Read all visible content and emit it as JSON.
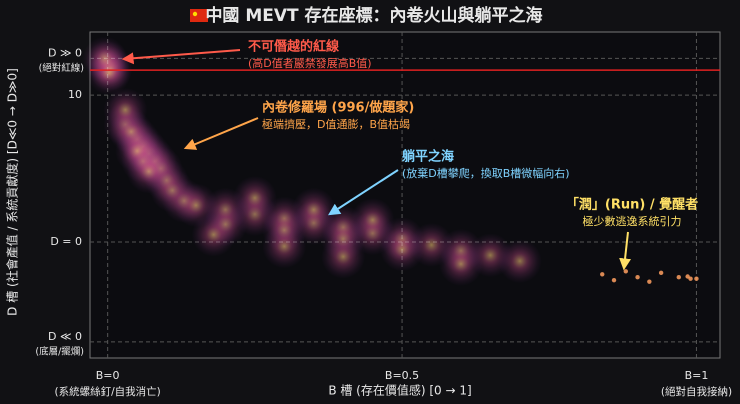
{
  "chart_data": {
    "type": "scatter",
    "title": "中國 MEVT 存在座標：內卷火山與躺平之海",
    "xlabel": "B 槽 (存在價值感) [0 → 1]",
    "ylabel": "D 槽 (社會產值 / 系統貢獻度) [D≪0 → D≫0]",
    "xlim": [
      -0.03,
      1.04
    ],
    "ylim": [
      -7.9,
      14.3
    ],
    "xticks": [
      {
        "value": 0,
        "label": "B=0"
      },
      {
        "value": 0.5,
        "label": "B=0.5"
      },
      {
        "value": 1,
        "label": "B=1"
      }
    ],
    "xtick_sublabels": [
      "(系統螺絲釘/自我消亡)",
      null,
      "(絕對自我接納)"
    ],
    "yticks": [
      {
        "value": -6.8,
        "label": "D ≪ 0"
      },
      {
        "value": 0,
        "label": "D = 0"
      },
      10,
      {
        "value": 12.5,
        "label": "D ≫ 0"
      }
    ],
    "ytick_sublabels": [
      "(底層/擺爛)",
      null,
      null,
      "(絕對紅線)"
    ],
    "grid": true,
    "hline": {
      "value": 11.7,
      "color": "#e02020"
    },
    "series": [
      {
        "color": "#d04888",
        "x": [
          0.0,
          0.005,
          -0.005,
          0.002,
          0.03,
          0.05,
          0.06,
          0.07,
          0.08,
          0.04,
          0.09,
          0.1,
          0.06,
          0.05,
          0.11,
          0.13,
          0.03,
          0.07,
          0.15,
          0.2,
          0.25,
          0.3,
          0.35,
          0.4,
          0.45,
          0.5,
          0.55,
          0.6,
          0.65,
          0.7,
          0.2,
          0.3,
          0.4,
          0.25,
          0.35,
          0.45,
          0.5,
          0.6,
          0.18,
          0.3,
          0.4
        ],
        "y": [
          12.2,
          11.8,
          12.5,
          11.5,
          8,
          7,
          6.5,
          6,
          5.5,
          7.5,
          5,
          4.2,
          5.5,
          6.2,
          3.5,
          2.8,
          9,
          4.8,
          2.5,
          2.2,
          1.9,
          1.6,
          1.3,
          1.0,
          0.6,
          0.2,
          -0.2,
          -0.6,
          -0.9,
          -1.3,
          1.2,
          0.8,
          0.2,
          3.0,
          2.2,
          1.5,
          -0.5,
          -1.5,
          0.5,
          -0.3,
          -1.0
        ]
      },
      {
        "color": "#ffa060",
        "x": [
          0.84,
          0.86,
          0.88,
          0.9,
          0.92,
          0.94,
          0.97,
          0.99,
          1.0,
          0.985
        ],
        "y": [
          -2.2,
          -2.6,
          -2.0,
          -2.4,
          -2.7,
          -2.1,
          -2.4,
          -2.5,
          -2.5,
          -2.35
        ]
      }
    ],
    "annotations": [
      {
        "text": "不可僭越的紅線",
        "subtext": [
          "(高D值者嚴禁發展高B值)"
        ],
        "color": "#ff5a4a"
      },
      {
        "text": "內卷修羅場 (996/做題家)",
        "subtext": [
          "極端擠壓，D值通膨，B值枯竭"
        ],
        "color": "#ffa54a"
      },
      {
        "text": "躺平之海",
        "subtext": [
          "(放棄D槽攀爬，換取B槽微幅向右)"
        ],
        "color": "#7fd3ff"
      },
      {
        "text": "「潤」(Run) / 覺醒者",
        "subtext": [
          "極少數逃逸系統引力"
        ],
        "color": "#ffe066"
      }
    ]
  }
}
